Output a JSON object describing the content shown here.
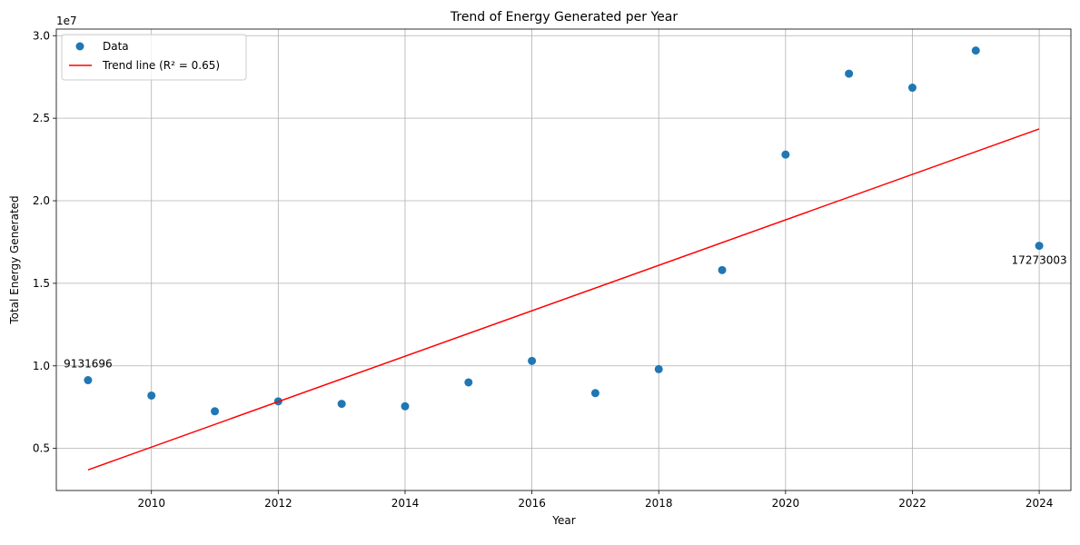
{
  "chart_data": {
    "type": "scatter",
    "title": "Trend of Energy Generated per Year",
    "xlabel": "Year",
    "ylabel": "Total Energy Generated",
    "y_offset_label": "1e7",
    "xlim": [
      2008.5,
      2024.5
    ],
    "ylim": [
      2450000,
      30400000
    ],
    "x_ticks": [
      2010,
      2012,
      2014,
      2016,
      2018,
      2020,
      2022,
      2024
    ],
    "y_ticks": [
      0.5,
      1.0,
      1.5,
      2.0,
      2.5,
      3.0
    ],
    "y_ticks_scale": 10000000,
    "grid": true,
    "legend_position": "upper-left",
    "series": [
      {
        "name": "Data",
        "type": "scatter",
        "color": "#1f77b4",
        "x": [
          2009,
          2010,
          2011,
          2012,
          2013,
          2014,
          2015,
          2016,
          2017,
          2018,
          2019,
          2020,
          2021,
          2022,
          2023,
          2024
        ],
        "y": [
          9131696,
          8200000,
          7250000,
          7850000,
          7700000,
          7550000,
          9000000,
          10300000,
          8350000,
          9800000,
          15800000,
          22800000,
          27700000,
          26850000,
          29100000,
          17273003
        ]
      },
      {
        "name": "Trend line (R² = 0.65)",
        "type": "line",
        "color": "#ff0000",
        "x": [
          2009,
          2024
        ],
        "y": [
          3700000,
          24350000
        ]
      }
    ],
    "annotations": [
      {
        "text": "9131696",
        "x": 2009,
        "y": 9131696,
        "position": "above"
      },
      {
        "text": "17273003",
        "x": 2024,
        "y": 17273003,
        "position": "below"
      }
    ]
  }
}
